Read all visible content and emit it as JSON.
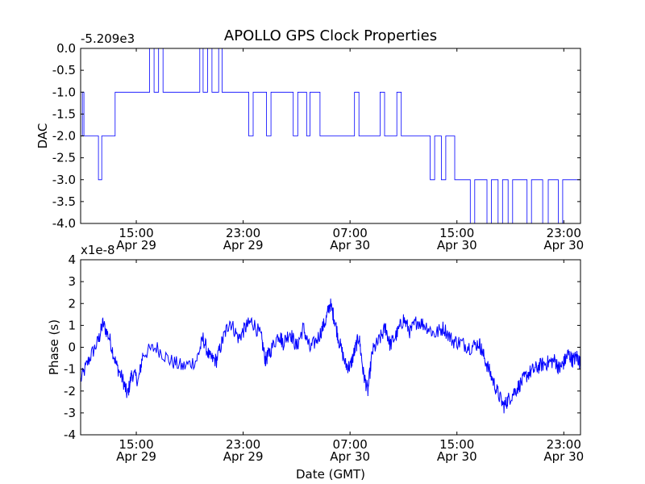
{
  "figure": {
    "title": "APOLLO GPS Clock Properties",
    "xlabel": "Date (GMT)",
    "x_ticks": [
      {
        "time": "15:00",
        "date": "Apr 29"
      },
      {
        "time": "23:00",
        "date": "Apr 29"
      },
      {
        "time": "07:00",
        "date": "Apr 30"
      },
      {
        "time": "15:00",
        "date": "Apr 30"
      },
      {
        "time": "23:00",
        "date": "Apr 30"
      }
    ]
  },
  "colors": {
    "series": "#0000ff",
    "axes": "#000000",
    "background": "#ffffff"
  },
  "chart_data": [
    {
      "type": "line",
      "ylabel": "DAC",
      "offset_label": "-5.209e3",
      "ylim": [
        -4.0,
        0.0
      ],
      "y_ticks": [
        "0.0",
        "-0.5",
        "-1.0",
        "-1.5",
        "-2.0",
        "-2.5",
        "-3.0",
        "-3.5",
        "-4.0"
      ],
      "xlim": [
        "2013-04-29 10:50",
        "2013-05-01 00:15"
      ],
      "grid": false,
      "series": [
        {
          "points": [
            [
              "2013-04-29 10:50",
              -2
            ],
            [
              "2013-04-29 10:58",
              -1
            ],
            [
              "2013-04-29 11:05",
              -2
            ],
            [
              "2013-04-29 12:10",
              -3
            ],
            [
              "2013-04-29 12:25",
              -2
            ],
            [
              "2013-04-29 13:25",
              -1
            ],
            [
              "2013-04-29 16:00",
              0
            ],
            [
              "2013-04-29 16:20",
              -1
            ],
            [
              "2013-04-29 16:40",
              0
            ],
            [
              "2013-04-29 17:00",
              -1
            ],
            [
              "2013-04-29 19:45",
              0
            ],
            [
              "2013-04-29 20:00",
              -1
            ],
            [
              "2013-04-29 20:20",
              0
            ],
            [
              "2013-04-29 20:40",
              -1
            ],
            [
              "2013-04-29 21:10",
              0
            ],
            [
              "2013-04-29 21:25",
              -1
            ],
            [
              "2013-04-29 23:25",
              -2
            ],
            [
              "2013-04-29 23:45",
              -1
            ],
            [
              "2013-04-30 00:45",
              -2
            ],
            [
              "2013-04-30 01:05",
              -1
            ],
            [
              "2013-04-30 02:45",
              -2
            ],
            [
              "2013-04-30 03:05",
              -1
            ],
            [
              "2013-04-30 03:45",
              -2
            ],
            [
              "2013-04-30 04:00",
              -1
            ],
            [
              "2013-04-30 04:45",
              -2
            ],
            [
              "2013-04-30 07:20",
              -1
            ],
            [
              "2013-04-30 07:40",
              -2
            ],
            [
              "2013-04-30 09:15",
              -1
            ],
            [
              "2013-04-30 09:35",
              -2
            ],
            [
              "2013-04-30 10:30",
              -1
            ],
            [
              "2013-04-30 10:50",
              -2
            ],
            [
              "2013-04-30 13:00",
              -3
            ],
            [
              "2013-04-30 13:20",
              -2
            ],
            [
              "2013-04-30 13:50",
              -3
            ],
            [
              "2013-04-30 14:10",
              -2
            ],
            [
              "2013-04-30 14:50",
              -3
            ],
            [
              "2013-04-30 16:00",
              -4
            ],
            [
              "2013-04-30 16:20",
              -3
            ],
            [
              "2013-04-30 17:15",
              -4
            ],
            [
              "2013-04-30 17:35",
              -3
            ],
            [
              "2013-04-30 18:05",
              -4
            ],
            [
              "2013-04-30 18:25",
              -3
            ],
            [
              "2013-04-30 18:50",
              -4
            ],
            [
              "2013-04-30 19:10",
              -3
            ],
            [
              "2013-04-30 20:15",
              -4
            ],
            [
              "2013-04-30 20:35",
              -3
            ],
            [
              "2013-04-30 21:25",
              -4
            ],
            [
              "2013-04-30 21:50",
              -3
            ],
            [
              "2013-04-30 22:35",
              -4
            ],
            [
              "2013-04-30 22:55",
              -3
            ],
            [
              "2013-05-01 00:15",
              -3
            ]
          ]
        }
      ]
    },
    {
      "type": "line",
      "ylabel": "Phase (s)",
      "offset_label": "x1e-8",
      "ylim": [
        -4,
        4
      ],
      "y_ticks": [
        "4",
        "3",
        "2",
        "1",
        "0",
        "-1",
        "-2",
        "-3",
        "-4"
      ],
      "xlim": [
        "2013-04-29 10:50",
        "2013-05-01 00:15"
      ],
      "grid": false,
      "series": [
        {
          "points": [
            [
              "2013-04-29 10:50",
              -1.5
            ],
            [
              "2013-04-29 11:30",
              -0.5
            ],
            [
              "2013-04-29 12:10",
              0.3
            ],
            [
              "2013-04-29 12:30",
              1.1
            ],
            [
              "2013-04-29 13:00",
              0.4
            ],
            [
              "2013-04-29 13:30",
              -0.8
            ],
            [
              "2013-04-29 14:00",
              -1.5
            ],
            [
              "2013-04-29 14:20",
              -2.2
            ],
            [
              "2013-04-29 14:40",
              -1.2
            ],
            [
              "2013-04-29 15:10",
              -1.5
            ],
            [
              "2013-04-29 15:30",
              -0.3
            ],
            [
              "2013-04-29 16:30",
              0.0
            ],
            [
              "2013-04-29 17:30",
              -0.6
            ],
            [
              "2013-04-29 18:30",
              -0.9
            ],
            [
              "2013-04-29 19:30",
              -0.6
            ],
            [
              "2013-04-29 20:00",
              0.4
            ],
            [
              "2013-04-29 20:30",
              -0.5
            ],
            [
              "2013-04-29 21:00",
              -0.6
            ],
            [
              "2013-04-29 21:30",
              0.4
            ],
            [
              "2013-04-29 22:00",
              1.2
            ],
            [
              "2013-04-29 22:40",
              0.4
            ],
            [
              "2013-04-29 23:10",
              0.9
            ],
            [
              "2013-04-29 23:40",
              1.2
            ],
            [
              "2013-04-30 00:20",
              0.5
            ],
            [
              "2013-04-30 00:40",
              -0.6
            ],
            [
              "2013-04-30 01:00",
              -0.2
            ],
            [
              "2013-04-30 01:40",
              0.6
            ],
            [
              "2013-04-30 02:00",
              0.2
            ],
            [
              "2013-04-30 02:30",
              0.7
            ],
            [
              "2013-04-30 03:00",
              0.0
            ],
            [
              "2013-04-30 03:30",
              0.9
            ],
            [
              "2013-04-30 04:00",
              -0.1
            ],
            [
              "2013-04-30 04:40",
              0.5
            ],
            [
              "2013-04-30 05:10",
              1.2
            ],
            [
              "2013-04-30 05:30",
              2.0
            ],
            [
              "2013-04-30 05:50",
              1.3
            ],
            [
              "2013-04-30 06:10",
              0.3
            ],
            [
              "2013-04-30 06:40",
              -0.8
            ],
            [
              "2013-04-30 07:00",
              -0.9
            ],
            [
              "2013-04-30 07:20",
              -0.2
            ],
            [
              "2013-04-30 07:40",
              0.5
            ],
            [
              "2013-04-30 08:00",
              -1.2
            ],
            [
              "2013-04-30 08:20",
              -2.0
            ],
            [
              "2013-04-30 08:40",
              -0.2
            ],
            [
              "2013-04-30 09:10",
              0.3
            ],
            [
              "2013-04-30 09:40",
              0.9
            ],
            [
              "2013-04-30 10:00",
              0.1
            ],
            [
              "2013-04-30 10:30",
              0.6
            ],
            [
              "2013-04-30 11:00",
              1.3
            ],
            [
              "2013-04-30 11:30",
              0.7
            ],
            [
              "2013-04-30 12:00",
              1.2
            ],
            [
              "2013-04-30 12:40",
              1.0
            ],
            [
              "2013-04-30 13:20",
              0.6
            ],
            [
              "2013-04-30 14:00",
              0.9
            ],
            [
              "2013-04-30 14:40",
              0.3
            ],
            [
              "2013-04-30 15:20",
              0.2
            ],
            [
              "2013-04-30 16:00",
              0.0
            ],
            [
              "2013-04-30 16:40",
              0.2
            ],
            [
              "2013-04-30 17:00",
              -0.4
            ],
            [
              "2013-04-30 17:30",
              -1.2
            ],
            [
              "2013-04-30 18:00",
              -2.0
            ],
            [
              "2013-04-30 18:30",
              -2.7
            ],
            [
              "2013-04-30 18:50",
              -2.4
            ],
            [
              "2013-04-30 19:20",
              -2.0
            ],
            [
              "2013-04-30 19:50",
              -1.6
            ],
            [
              "2013-04-30 20:20",
              -1.2
            ],
            [
              "2013-04-30 20:50",
              -1.0
            ],
            [
              "2013-04-30 21:20",
              -0.8
            ],
            [
              "2013-04-30 21:50",
              -0.7
            ],
            [
              "2013-04-30 22:20",
              -0.6
            ],
            [
              "2013-04-30 22:40",
              -1.0
            ],
            [
              "2013-04-30 23:00",
              -0.7
            ],
            [
              "2013-04-30 23:20",
              -0.3
            ],
            [
              "2013-04-30 23:40",
              -0.6
            ],
            [
              "2013-05-01 00:00",
              -0.4
            ],
            [
              "2013-05-01 00:15",
              -0.8
            ]
          ]
        }
      ]
    }
  ]
}
